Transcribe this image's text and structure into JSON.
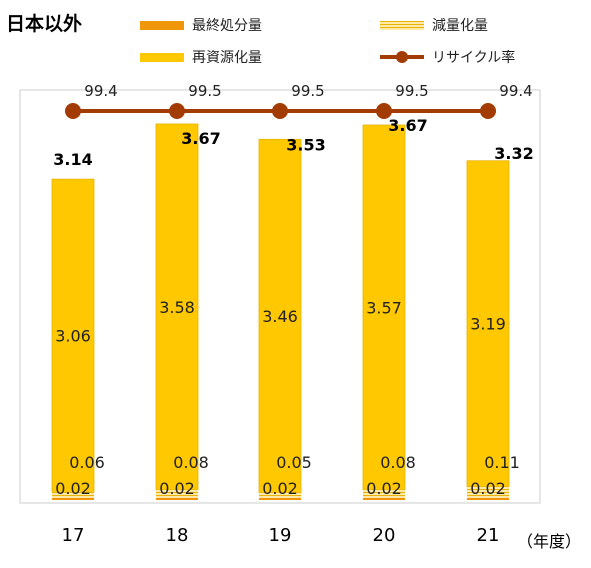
{
  "chart_data": {
    "type": "bar",
    "title": "日本以外",
    "categories": [
      "17",
      "18",
      "19",
      "20",
      "21"
    ],
    "x_unit": "（年度）",
    "stacked": true,
    "series": [
      {
        "name": "最終処分量",
        "values": [
          0.02,
          0.02,
          0.02,
          0.02,
          0.02
        ],
        "color": "#F0960A"
      },
      {
        "name": "減量化量",
        "values": [
          0.06,
          0.08,
          0.05,
          0.08,
          0.11
        ],
        "color": "#FDE49A"
      },
      {
        "name": "再資源化量",
        "values": [
          3.06,
          3.58,
          3.46,
          3.57,
          3.19
        ],
        "color": "#FFC800"
      }
    ],
    "totals": [
      "3.14",
      "3.67",
      "3.53",
      "3.67",
      "3.32"
    ],
    "line_series": {
      "name": "リサイクル率",
      "values": [
        99.4,
        99.5,
        99.5,
        99.5,
        99.4
      ],
      "color": "#A33B05"
    },
    "segment_labels": {
      "final": [
        "0.02",
        "0.02",
        "0.02",
        "0.02",
        "0.02"
      ],
      "reduction": [
        "0.06",
        "0.08",
        "0.05",
        "0.08",
        "0.11"
      ],
      "recycle": [
        "3.06",
        "3.58",
        "3.46",
        "3.57",
        "3.19"
      ],
      "rate": [
        "99.4",
        "99.5",
        "99.5",
        "99.5",
        "99.4"
      ]
    },
    "legend": [
      {
        "label": "最終処分量",
        "kind": "solid",
        "color": "#F0960A"
      },
      {
        "label": "減量化量",
        "kind": "hatched",
        "color": "#FDE49A"
      },
      {
        "label": "再資源化量",
        "kind": "solid",
        "color": "#FFC800"
      },
      {
        "label": "リサイクル率",
        "kind": "line-marker",
        "color": "#A33B05"
      }
    ],
    "ylim": [
      0,
      4
    ],
    "legend_placement": "top",
    "grid": false
  }
}
